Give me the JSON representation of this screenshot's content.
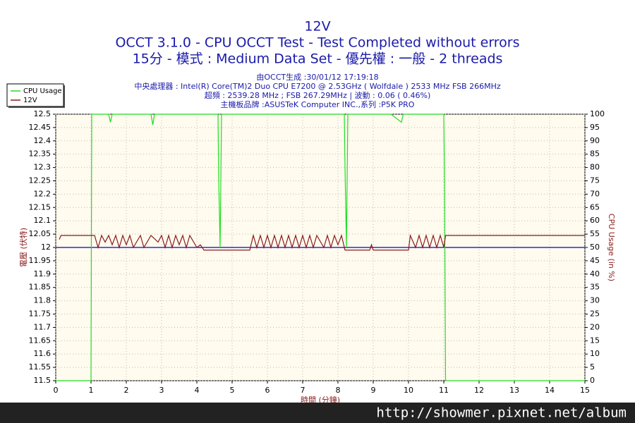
{
  "chart_data": {
    "type": "line",
    "title": "12V",
    "subtitle": "OCCT 3.1.0 - CPU OCCT Test - Test Completed without errors",
    "subtitle2": "15分 - 模式 : Medium Data Set - 優先權 : 一般 - 2 threads",
    "info": [
      "由OCCT生成 :30/01/12 17:19:18",
      "中央處理器 : Intel(R) Core(TM)2 Duo CPU E7200 @ 2.53GHz ( Wolfdale ) 2533 MHz FSB 266MHz",
      "超頻 : 2539.28 MHz ; FSB 267.29MHz | 波動 : 0.06 ( 0.46%)",
      "主機板品牌 :ASUSTeK Computer INC.,系列 :P5K PRO"
    ],
    "xlabel": "時間 (分鐘)",
    "ylabel": "電壓 (伏特)",
    "y2label": "CPU Usage (in %)",
    "watermark": "http://showmer.pixnet.net/album",
    "xlim": [
      0,
      15
    ],
    "xticks": [
      0,
      1,
      2,
      3,
      4,
      5,
      6,
      7,
      8,
      9,
      10,
      11,
      12,
      13,
      14,
      15
    ],
    "ylim": [
      11.5,
      12.5
    ],
    "yticks": [
      11.5,
      11.55,
      11.6,
      11.65,
      11.7,
      11.75,
      11.8,
      11.85,
      11.9,
      11.95,
      12,
      12.05,
      12.1,
      12.15,
      12.2,
      12.25,
      12.3,
      12.35,
      12.4,
      12.45,
      12.5
    ],
    "y2lim": [
      0,
      100
    ],
    "y2ticks": [
      0,
      5,
      10,
      15,
      20,
      25,
      30,
      35,
      40,
      45,
      50,
      55,
      60,
      65,
      70,
      75,
      80,
      85,
      90,
      95,
      100
    ],
    "grid": true,
    "legend": "top-left",
    "reference_line": {
      "value": 12,
      "color": "#0000cc"
    },
    "series": [
      {
        "name": "CPU Usage",
        "color": "#22dd22",
        "axis": "y2",
        "x": [
          0,
          1.0,
          1.02,
          1.5,
          1.55,
          1.6,
          2.0,
          2.7,
          2.75,
          2.8,
          3.5,
          4.4,
          4.6,
          4.62,
          4.66,
          4.7,
          6.5,
          7.2,
          8.18,
          8.2,
          8.24,
          8.28,
          9.5,
          9.8,
          9.85,
          11.0,
          11.02,
          11.05,
          15.0
        ],
        "values": [
          0,
          0,
          100,
          100,
          97,
          100,
          100,
          100,
          96,
          100,
          100,
          100,
          100,
          75,
          50,
          100,
          100,
          100,
          100,
          80,
          50,
          100,
          100,
          97,
          100,
          100,
          75,
          0,
          0
        ]
      },
      {
        "name": "12V",
        "color": "#8b1a1a",
        "x": [
          0.1,
          0.15,
          1.0,
          1.1,
          1.2,
          1.3,
          1.4,
          1.5,
          1.6,
          1.7,
          1.8,
          1.9,
          2.0,
          2.1,
          2.2,
          2.4,
          2.5,
          2.7,
          2.9,
          3.0,
          3.1,
          3.2,
          3.3,
          3.4,
          3.5,
          3.6,
          3.7,
          3.8,
          4.0,
          4.1,
          4.2,
          5.5,
          5.6,
          5.7,
          5.8,
          5.9,
          6.0,
          6.1,
          6.2,
          6.3,
          6.4,
          6.5,
          6.6,
          6.7,
          6.8,
          6.9,
          7.0,
          7.1,
          7.2,
          7.3,
          7.4,
          7.6,
          7.7,
          7.8,
          7.9,
          8.0,
          8.1,
          8.2,
          8.9,
          8.95,
          9.0,
          10.0,
          10.05,
          10.2,
          10.3,
          10.4,
          10.5,
          10.6,
          10.7,
          10.8,
          10.9,
          11.0,
          11.05,
          15.0
        ],
        "values": [
          12.03,
          12.045,
          12.045,
          12.045,
          12.0,
          12.045,
          12.02,
          12.045,
          12.01,
          12.045,
          12.0,
          12.045,
          12.01,
          12.045,
          12.0,
          12.045,
          12.0,
          12.045,
          12.02,
          12.045,
          12.0,
          12.045,
          12.0,
          12.045,
          12.01,
          12.045,
          12.0,
          12.045,
          12.0,
          12.01,
          11.99,
          11.99,
          12.045,
          12.0,
          12.045,
          12.0,
          12.045,
          12.0,
          12.045,
          12.0,
          12.045,
          12.0,
          12.045,
          12.0,
          12.045,
          12.0,
          12.045,
          12.0,
          12.045,
          12.0,
          12.045,
          12.0,
          12.045,
          12.0,
          12.045,
          12.01,
          12.045,
          11.99,
          11.99,
          12.01,
          11.99,
          11.99,
          12.045,
          12.0,
          12.045,
          12.0,
          12.045,
          12.0,
          12.045,
          12.0,
          12.045,
          12.0,
          12.045,
          12.045
        ]
      }
    ]
  }
}
